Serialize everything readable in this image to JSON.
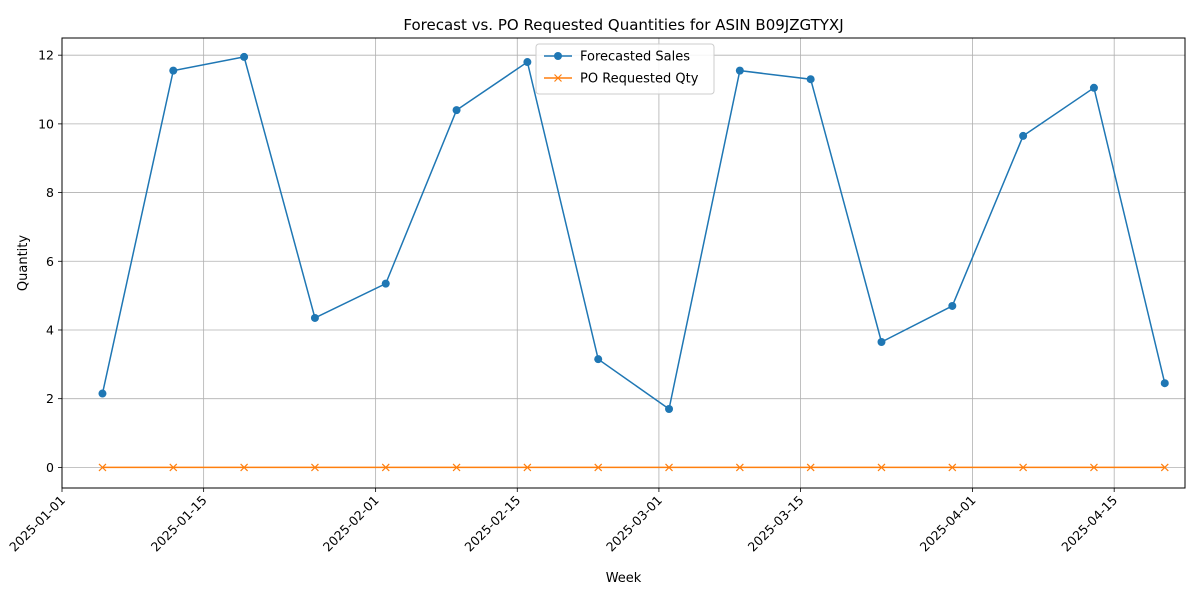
{
  "chart_data": {
    "type": "line",
    "title": "Forecast vs. PO Requested Quantities for ASIN B09JZGTYXJ",
    "xlabel": "Week",
    "ylabel": "Quantity",
    "x": [
      "2025-01-05",
      "2025-01-12",
      "2025-01-19",
      "2025-01-26",
      "2025-02-02",
      "2025-02-09",
      "2025-02-16",
      "2025-02-23",
      "2025-03-02",
      "2025-03-09",
      "2025-03-16",
      "2025-03-23",
      "2025-03-30",
      "2025-04-06",
      "2025-04-13",
      "2025-04-20"
    ],
    "series": [
      {
        "name": "Forecasted Sales",
        "marker": "circle",
        "color": "#1f77b4",
        "values": [
          2.15,
          11.55,
          11.95,
          4.35,
          5.35,
          10.4,
          11.8,
          3.15,
          1.7,
          11.55,
          11.3,
          3.65,
          4.7,
          9.65,
          11.05,
          2.45
        ]
      },
      {
        "name": "PO Requested Qty",
        "marker": "x",
        "color": "#ff7f0e",
        "values": [
          0,
          0,
          0,
          0,
          0,
          0,
          0,
          0,
          0,
          0,
          0,
          0,
          0,
          0,
          0,
          0
        ]
      }
    ],
    "xticks": [
      "2025-01-01",
      "2025-01-15",
      "2025-02-01",
      "2025-02-15",
      "2025-03-01",
      "2025-03-15",
      "2025-04-01",
      "2025-04-15"
    ],
    "yticks": [
      0,
      2,
      4,
      6,
      8,
      10,
      12
    ],
    "xlim": [
      "2025-01-01",
      "2025-04-22"
    ],
    "ylim": [
      -0.6,
      12.5
    ],
    "grid": true,
    "legend_position": "upper center"
  }
}
